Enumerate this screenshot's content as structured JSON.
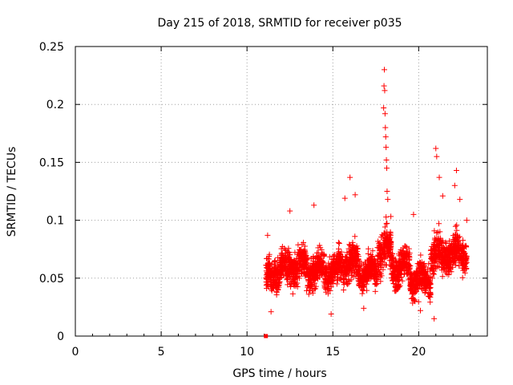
{
  "chart_data": {
    "type": "scatter",
    "title": "Day 215 of 2018, SRMTID for receiver p035",
    "xlabel": "GPS time / hours",
    "ylabel": "SRMTID / TECUs",
    "xlim": [
      0,
      24
    ],
    "ylim": [
      0,
      0.25
    ],
    "xticks": [
      0,
      5,
      10,
      15,
      20
    ],
    "xtick_labels": [
      "0",
      "5",
      "10",
      "15",
      "20"
    ],
    "yticks": [
      0,
      0.05,
      0.1,
      0.15,
      0.2,
      0.25
    ],
    "ytick_labels": [
      "0",
      "0.05",
      "0.1",
      "0.15",
      "0.2",
      "0.25"
    ],
    "grid": true,
    "marker": "+",
    "series_color": "#ff0000",
    "baseline_point": {
      "x": 11.1,
      "y": 0.0
    },
    "segments": [
      {
        "t0": 11.1,
        "t1": 11.6,
        "mean": 0.05,
        "spread": 0.02
      },
      {
        "t0": 11.6,
        "t1": 12.5,
        "mean": 0.058,
        "spread": 0.02
      },
      {
        "t0": 12.5,
        "t1": 13.5,
        "mean": 0.06,
        "spread": 0.02
      },
      {
        "t0": 13.5,
        "t1": 14.5,
        "mean": 0.057,
        "spread": 0.018
      },
      {
        "t0": 14.5,
        "t1": 15.3,
        "mean": 0.055,
        "spread": 0.018
      },
      {
        "t0": 15.3,
        "t1": 16.5,
        "mean": 0.063,
        "spread": 0.02
      },
      {
        "t0": 16.5,
        "t1": 17.6,
        "mean": 0.055,
        "spread": 0.018
      },
      {
        "t0": 17.6,
        "t1": 18.4,
        "mean": 0.075,
        "spread": 0.025
      },
      {
        "t0": 18.4,
        "t1": 19.5,
        "mean": 0.06,
        "spread": 0.02
      },
      {
        "t0": 19.5,
        "t1": 20.7,
        "mean": 0.048,
        "spread": 0.018
      },
      {
        "t0": 20.7,
        "t1": 21.5,
        "mean": 0.07,
        "spread": 0.022
      },
      {
        "t0": 21.5,
        "t1": 22.8,
        "mean": 0.072,
        "spread": 0.02
      }
    ],
    "peaks": [
      {
        "x": 18.0,
        "y": 0.23
      },
      {
        "x": 17.98,
        "y": 0.216
      },
      {
        "x": 18.02,
        "y": 0.212
      },
      {
        "x": 17.96,
        "y": 0.197
      },
      {
        "x": 18.04,
        "y": 0.192
      },
      {
        "x": 18.06,
        "y": 0.18
      },
      {
        "x": 18.08,
        "y": 0.172
      },
      {
        "x": 18.1,
        "y": 0.163
      },
      {
        "x": 18.12,
        "y": 0.152
      },
      {
        "x": 18.14,
        "y": 0.145
      },
      {
        "x": 18.16,
        "y": 0.125
      },
      {
        "x": 18.2,
        "y": 0.118
      },
      {
        "x": 16.0,
        "y": 0.137
      },
      {
        "x": 16.3,
        "y": 0.122
      },
      {
        "x": 15.7,
        "y": 0.119
      },
      {
        "x": 12.5,
        "y": 0.108
      },
      {
        "x": 13.9,
        "y": 0.113
      },
      {
        "x": 21.0,
        "y": 0.162
      },
      {
        "x": 21.05,
        "y": 0.155
      },
      {
        "x": 22.2,
        "y": 0.143
      },
      {
        "x": 21.2,
        "y": 0.137
      },
      {
        "x": 22.1,
        "y": 0.13
      },
      {
        "x": 21.4,
        "y": 0.121
      },
      {
        "x": 22.4,
        "y": 0.118
      },
      {
        "x": 19.7,
        "y": 0.105
      },
      {
        "x": 22.8,
        "y": 0.1
      },
      {
        "x": 11.2,
        "y": 0.087
      },
      {
        "x": 11.4,
        "y": 0.021
      },
      {
        "x": 14.9,
        "y": 0.019
      },
      {
        "x": 20.9,
        "y": 0.015
      },
      {
        "x": 20.1,
        "y": 0.022
      },
      {
        "x": 16.8,
        "y": 0.024
      }
    ]
  }
}
